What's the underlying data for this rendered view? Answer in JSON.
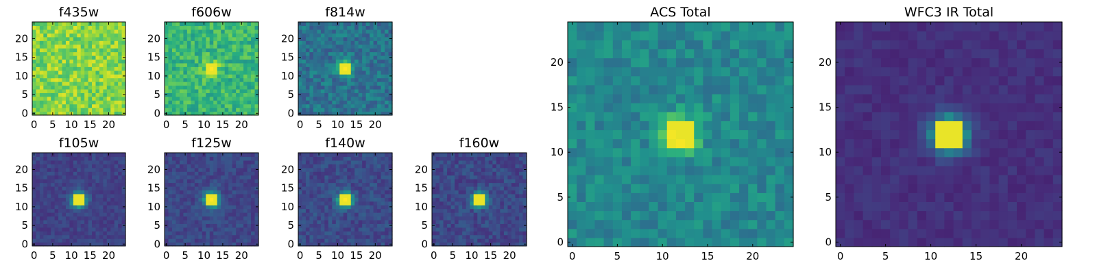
{
  "figure_title": "",
  "chart_data": [
    {
      "id": "f435w",
      "type": "heatmap",
      "title": "f435w",
      "colormap": "viridis",
      "grid_size": 25,
      "x_ticks": [
        0,
        5,
        10,
        15,
        20
      ],
      "y_ticks": [
        0,
        5,
        10,
        15,
        20
      ],
      "source": {
        "center": null,
        "peak": 0.0
      },
      "background": {
        "mean": 0.82,
        "noise": 0.14
      }
    },
    {
      "id": "f606w",
      "type": "heatmap",
      "title": "f606w",
      "colormap": "viridis",
      "grid_size": 25,
      "x_ticks": [
        0,
        5,
        10,
        15,
        20
      ],
      "y_ticks": [
        0,
        5,
        10,
        15,
        20
      ],
      "source": {
        "center": [
          12,
          12
        ],
        "peak": 0.32
      },
      "background": {
        "mean": 0.66,
        "noise": 0.13
      }
    },
    {
      "id": "f814w",
      "type": "heatmap",
      "title": "f814w",
      "colormap": "viridis",
      "grid_size": 25,
      "x_ticks": [
        0,
        5,
        10,
        15,
        20
      ],
      "y_ticks": [
        0,
        5,
        10,
        15,
        20
      ],
      "source": {
        "center": [
          12,
          12
        ],
        "peak": 0.6
      },
      "background": {
        "mean": 0.38,
        "noise": 0.12
      }
    },
    {
      "id": "f105w",
      "type": "heatmap",
      "title": "f105w",
      "colormap": "viridis",
      "grid_size": 25,
      "x_ticks": [
        0,
        5,
        10,
        15,
        20
      ],
      "y_ticks": [
        0,
        5,
        10,
        15,
        20
      ],
      "source": {
        "center": [
          12,
          12
        ],
        "peak": 0.8
      },
      "background": {
        "mean": 0.2,
        "noise": 0.06
      }
    },
    {
      "id": "f125w",
      "type": "heatmap",
      "title": "f125w",
      "colormap": "viridis",
      "grid_size": 25,
      "x_ticks": [
        0,
        5,
        10,
        15,
        20
      ],
      "y_ticks": [
        0,
        5,
        10,
        15,
        20
      ],
      "source": {
        "center": [
          12,
          12
        ],
        "peak": 0.78
      },
      "background": {
        "mean": 0.22,
        "noise": 0.07
      }
    },
    {
      "id": "f140w",
      "type": "heatmap",
      "title": "f140w",
      "colormap": "viridis",
      "grid_size": 25,
      "x_ticks": [
        0,
        5,
        10,
        15,
        20
      ],
      "y_ticks": [
        0,
        5,
        10,
        15,
        20
      ],
      "source": {
        "center": [
          12,
          12
        ],
        "peak": 0.76
      },
      "background": {
        "mean": 0.23,
        "noise": 0.08
      }
    },
    {
      "id": "f160w",
      "type": "heatmap",
      "title": "f160w",
      "colormap": "viridis",
      "grid_size": 25,
      "x_ticks": [
        0,
        5,
        10,
        15,
        20
      ],
      "y_ticks": [
        0,
        5,
        10,
        15,
        20
      ],
      "source": {
        "center": [
          12,
          12
        ],
        "peak": 0.76
      },
      "background": {
        "mean": 0.22,
        "noise": 0.08
      }
    },
    {
      "id": "acs-total",
      "type": "heatmap",
      "title": "ACS Total",
      "colormap": "viridis",
      "grid_size": 25,
      "x_ticks": [
        0,
        5,
        10,
        15,
        20
      ],
      "y_ticks": [
        0,
        5,
        10,
        15,
        20
      ],
      "source": {
        "center": [
          12,
          12
        ],
        "peak": 0.55
      },
      "background": {
        "mean": 0.47,
        "noise": 0.1
      }
    },
    {
      "id": "wfc3-ir-total",
      "type": "heatmap",
      "title": "WFC3 IR Total",
      "colormap": "viridis",
      "grid_size": 25,
      "x_ticks": [
        0,
        5,
        10,
        15,
        20
      ],
      "y_ticks": [
        0,
        5,
        10,
        15,
        20
      ],
      "source": {
        "center": [
          12,
          12
        ],
        "peak": 0.82
      },
      "background": {
        "mean": 0.14,
        "noise": 0.04
      }
    }
  ]
}
